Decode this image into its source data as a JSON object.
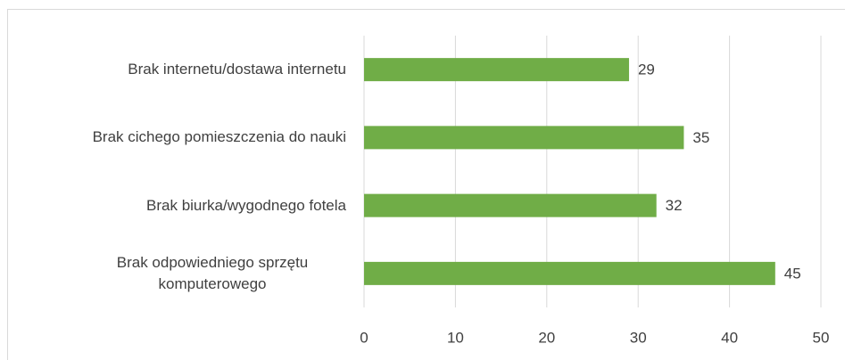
{
  "chart_data": {
    "type": "bar",
    "orientation": "horizontal",
    "categories": [
      "Brak internetu/dostawa internetu",
      "Brak cichego pomieszczenia do nauki",
      "Brak biurka/wygodnego fotela",
      "Brak odpowiedniego sprzętu komputerowego"
    ],
    "values": [
      29,
      35,
      32,
      45
    ],
    "color": "#70ad47",
    "xlim": [
      0,
      50
    ],
    "xticks": [
      0,
      10,
      20,
      30,
      40,
      50
    ],
    "grid": true
  }
}
